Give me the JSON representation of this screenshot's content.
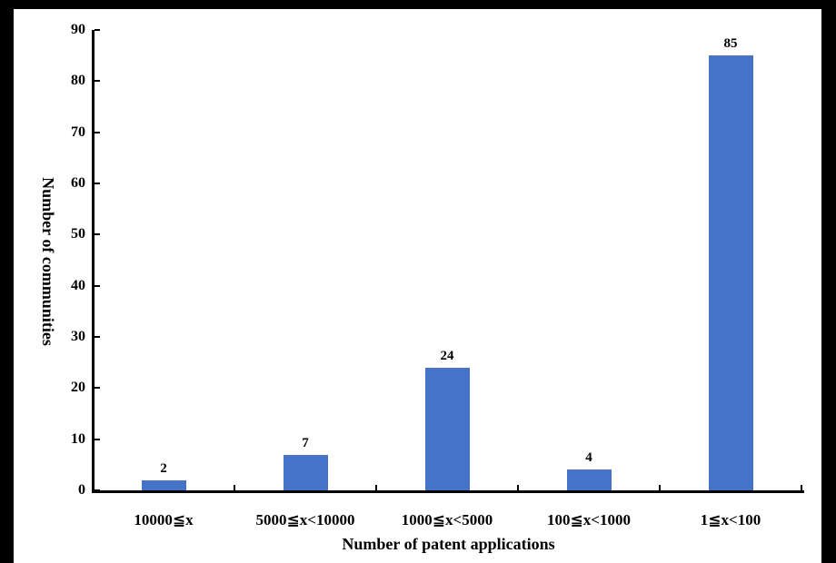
{
  "chart_data": {
    "type": "bar",
    "title": "",
    "categories": [
      "10000≦x",
      "5000≦x<10000",
      "1000≦x<5000",
      "100≦x<1000",
      "1≦x<100"
    ],
    "values": [
      2,
      7,
      24,
      4,
      85
    ],
    "value_labels": [
      "2",
      "7",
      "24",
      "4",
      "85"
    ],
    "xlabel": "Number of patent applications",
    "ylabel": "Number of communities",
    "ylim": [
      0,
      90
    ],
    "ytick_step": 10,
    "ytick_labels": [
      "0",
      "10",
      "20",
      "30",
      "40",
      "50",
      "60",
      "70",
      "80",
      "90"
    ],
    "grid": false,
    "legend": null,
    "bar_color": "#4573C7",
    "axis_color": "#000000",
    "background_color": "#ffffff",
    "frame_color": "#000000",
    "tick_direction": "in"
  }
}
